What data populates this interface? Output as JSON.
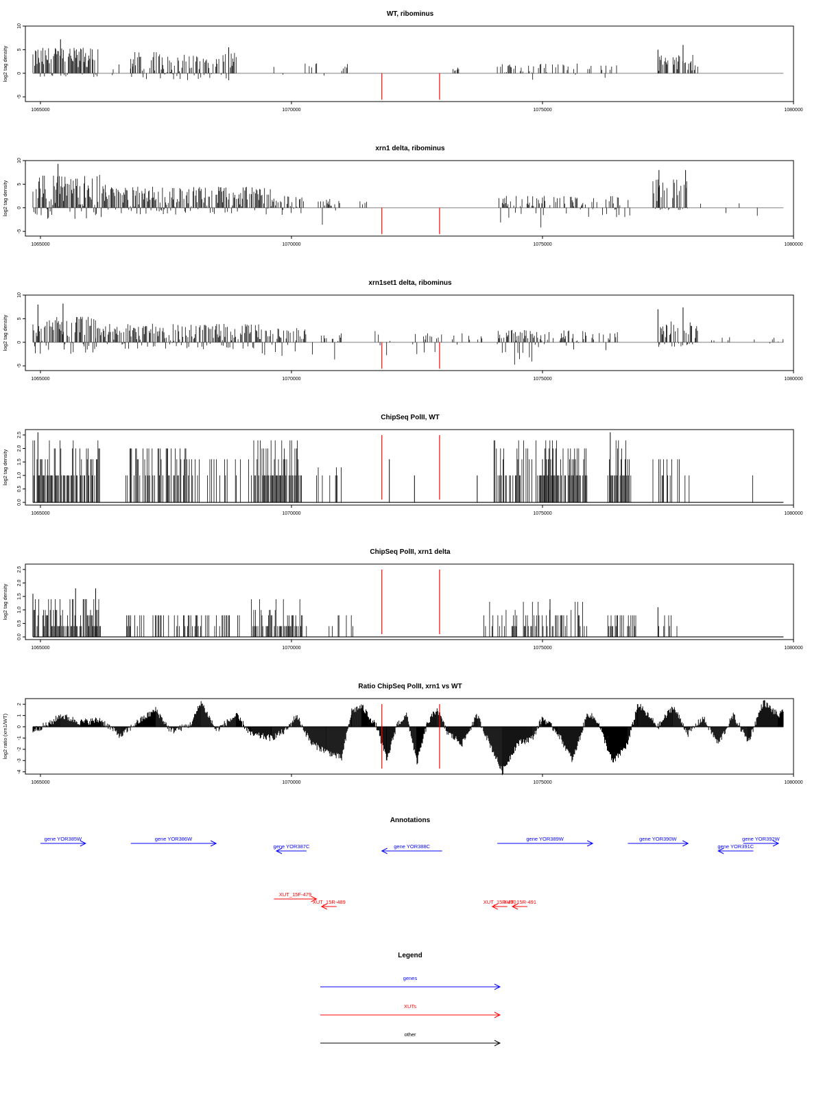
{
  "chart_data": [
    {
      "type": "bar",
      "title": "WT, ribominus",
      "ylabel": "log2 tag density",
      "ylim": [
        -6,
        10
      ],
      "yticks": [
        "10",
        "5",
        "0",
        "-5"
      ],
      "xlim": [
        1064700,
        1080000
      ],
      "xticks": [
        "1065000",
        "1070000",
        "1075000",
        "1080000"
      ],
      "red_markers_x": [
        1071800,
        1072950
      ],
      "segments": [
        {
          "x0": 1064850,
          "x1": 1066150,
          "pmax": 5.5,
          "pmin": -0.8,
          "density": 0.9
        },
        {
          "x0": 1066350,
          "x1": 1066900,
          "pmax": 2.0,
          "pmin": -0.5,
          "density": 0.15
        },
        {
          "x0": 1066800,
          "x1": 1068900,
          "pmax": 4.5,
          "pmin": -1.5,
          "density": 0.7
        },
        {
          "x0": 1069600,
          "x1": 1070800,
          "pmax": 2.2,
          "pmin": -1.5,
          "density": 0.15
        },
        {
          "x0": 1071000,
          "x1": 1071300,
          "pmax": 2.0,
          "pmin": -1.0,
          "density": 0.3
        },
        {
          "x0": 1073200,
          "x1": 1073400,
          "pmax": 1.5,
          "pmin": 0,
          "density": 0.2
        },
        {
          "x0": 1074100,
          "x1": 1075000,
          "pmax": 2.0,
          "pmin": -2.5,
          "density": 0.3
        },
        {
          "x0": 1075000,
          "x1": 1076500,
          "pmax": 2.2,
          "pmin": -1.0,
          "density": 0.25
        },
        {
          "x0": 1077300,
          "x1": 1077500,
          "pmax": 4.0,
          "pmin": 0,
          "density": 0.7
        },
        {
          "x0": 1077600,
          "x1": 1078100,
          "pmax": 4.0,
          "pmin": 0,
          "density": 0.6
        }
      ],
      "spikes": [
        [
          1065400,
          7.2
        ],
        [
          1068750,
          5.5
        ],
        [
          1077800,
          6.0
        ],
        [
          1077300,
          5.0
        ]
      ],
      "baseline": 0
    },
    {
      "type": "bar",
      "title": "xrn1 delta, ribominus",
      "ylabel": "log2 tag density",
      "ylim": [
        -6,
        10
      ],
      "yticks": [
        "10",
        "5",
        "0",
        "-5"
      ],
      "xlim": [
        1064700,
        1080000
      ],
      "xticks": [
        "1065000",
        "1070000",
        "1075000",
        "1080000"
      ],
      "red_markers_x": [
        1071800,
        1072950
      ],
      "segments": [
        {
          "x0": 1064850,
          "x1": 1066300,
          "pmax": 7.0,
          "pmin": -2.5,
          "density": 0.95
        },
        {
          "x0": 1066300,
          "x1": 1069600,
          "pmax": 4.5,
          "pmin": -1.5,
          "density": 0.85
        },
        {
          "x0": 1069600,
          "x1": 1070300,
          "pmax": 2.5,
          "pmin": -1.5,
          "density": 0.5
        },
        {
          "x0": 1070500,
          "x1": 1071000,
          "pmax": 2.0,
          "pmin": -4.0,
          "density": 0.45
        },
        {
          "x0": 1071300,
          "x1": 1071500,
          "pmax": 1.5,
          "pmin": 0,
          "density": 0.2
        },
        {
          "x0": 1074100,
          "x1": 1075000,
          "pmax": 2.5,
          "pmin": -4.5,
          "density": 0.6
        },
        {
          "x0": 1075000,
          "x1": 1076800,
          "pmax": 2.5,
          "pmin": -2.0,
          "density": 0.4
        },
        {
          "x0": 1077200,
          "x1": 1077900,
          "pmax": 6.0,
          "pmin": -0.5,
          "density": 0.75
        },
        {
          "x0": 1078000,
          "x1": 1079500,
          "pmax": 2.0,
          "pmin": -2.0,
          "density": 0.08
        }
      ],
      "spikes": [
        [
          1065350,
          9.3
        ],
        [
          1077320,
          8.0
        ],
        [
          1077850,
          8.0
        ]
      ],
      "baseline": 0
    },
    {
      "type": "bar",
      "title": "xrn1set1 delta, ribominus",
      "ylabel": "log2 tag density",
      "ylim": [
        -6,
        10
      ],
      "yticks": [
        "10",
        "5",
        "0",
        "-5"
      ],
      "xlim": [
        1064700,
        1080000
      ],
      "xticks": [
        "1065000",
        "1070000",
        "1075000",
        "1080000"
      ],
      "red_markers_x": [
        1071800,
        1072950
      ],
      "segments": [
        {
          "x0": 1064850,
          "x1": 1066100,
          "pmax": 5.5,
          "pmin": -2.5,
          "density": 0.9
        },
        {
          "x0": 1066100,
          "x1": 1069400,
          "pmax": 4.0,
          "pmin": -1.5,
          "density": 0.8
        },
        {
          "x0": 1069400,
          "x1": 1070300,
          "pmax": 3.0,
          "pmin": -3.0,
          "density": 0.6
        },
        {
          "x0": 1070400,
          "x1": 1071100,
          "pmax": 2.0,
          "pmin": -4.0,
          "density": 0.5
        },
        {
          "x0": 1071600,
          "x1": 1072000,
          "pmax": 2.5,
          "pmin": -3.5,
          "density": 0.25
        },
        {
          "x0": 1072350,
          "x1": 1073400,
          "pmax": 2.0,
          "pmin": -2.5,
          "density": 0.3
        },
        {
          "x0": 1073400,
          "x1": 1073800,
          "pmax": 1.5,
          "pmin": 0,
          "density": 0.2
        },
        {
          "x0": 1074100,
          "x1": 1075000,
          "pmax": 2.8,
          "pmin": -5.0,
          "density": 0.7
        },
        {
          "x0": 1075000,
          "x1": 1076500,
          "pmax": 2.5,
          "pmin": -2.5,
          "density": 0.45
        },
        {
          "x0": 1077300,
          "x1": 1078100,
          "pmax": 4.5,
          "pmin": -1.0,
          "density": 0.65
        },
        {
          "x0": 1078300,
          "x1": 1079800,
          "pmax": 1.2,
          "pmin": -2.0,
          "density": 0.12
        }
      ],
      "spikes": [
        [
          1065450,
          8.2
        ],
        [
          1064950,
          8.0
        ],
        [
          1077800,
          7.4
        ],
        [
          1077300,
          7.0
        ]
      ],
      "baseline": 0
    },
    {
      "type": "bar",
      "title": "ChipSeq PolII, WT",
      "ylabel": "log2 tag density",
      "ylim": [
        -0.1,
        2.7
      ],
      "yticks": [
        "0.0",
        "0.5",
        "1.0",
        "1.5",
        "2.0",
        "2.5"
      ],
      "xlim": [
        1064700,
        1080000
      ],
      "xticks": [
        "1065000",
        "1070000",
        "1075000",
        "1080000"
      ],
      "red_markers_x": [
        1071800,
        1072950
      ],
      "segments": [
        {
          "x0": 1064850,
          "x1": 1066200,
          "pmax": 2.3,
          "pmin": 0,
          "density": 0.8
        },
        {
          "x0": 1066700,
          "x1": 1067900,
          "pmax": 2.0,
          "pmin": 0,
          "density": 0.6
        },
        {
          "x0": 1067900,
          "x1": 1069200,
          "pmax": 1.6,
          "pmin": 0,
          "density": 0.2
        },
        {
          "x0": 1069200,
          "x1": 1070200,
          "pmax": 2.3,
          "pmin": 0,
          "density": 0.8
        },
        {
          "x0": 1070500,
          "x1": 1071000,
          "pmax": 1.3,
          "pmin": 0,
          "density": 0.2
        },
        {
          "x0": 1074000,
          "x1": 1075300,
          "pmax": 2.3,
          "pmin": 0,
          "density": 0.65
        },
        {
          "x0": 1075000,
          "x1": 1075900,
          "pmax": 2.0,
          "pmin": 0,
          "density": 0.7
        },
        {
          "x0": 1076300,
          "x1": 1076800,
          "pmax": 2.3,
          "pmin": 0,
          "density": 0.8
        },
        {
          "x0": 1077200,
          "x1": 1078000,
          "pmax": 1.6,
          "pmin": 0,
          "density": 0.35
        },
        {
          "x0": 1078400,
          "x1": 1079500,
          "pmax": 1.5,
          "pmin": 0,
          "density": 0.05
        }
      ],
      "spikes": [
        [
          1064950,
          2.6
        ],
        [
          1076350,
          2.6
        ],
        [
          1071950,
          1.6
        ],
        [
          1072450,
          1.0
        ],
        [
          1073700,
          1.0
        ]
      ],
      "baseline": 0
    },
    {
      "type": "bar",
      "title": "ChipSeq PolII, xrn1 delta",
      "ylabel": "log2 tag density",
      "ylim": [
        -0.1,
        2.7
      ],
      "yticks": [
        "0.0",
        "0.5",
        "1.0",
        "1.5",
        "2.0",
        "2.5"
      ],
      "xlim": [
        1064700,
        1080000
      ],
      "xticks": [
        "1065000",
        "1070000",
        "1075000",
        "1080000"
      ],
      "red_markers_x": [
        1071800,
        1072950
      ],
      "segments": [
        {
          "x0": 1064850,
          "x1": 1066200,
          "pmax": 1.6,
          "pmin": 0,
          "density": 0.8
        },
        {
          "x0": 1066700,
          "x1": 1069000,
          "pmax": 0.8,
          "pmin": 0,
          "density": 0.35
        },
        {
          "x0": 1069200,
          "x1": 1070300,
          "pmax": 1.4,
          "pmin": 0,
          "density": 0.7
        },
        {
          "x0": 1070700,
          "x1": 1071400,
          "pmax": 0.8,
          "pmin": 0,
          "density": 0.1
        },
        {
          "x0": 1073800,
          "x1": 1076000,
          "pmax": 1.3,
          "pmin": 0,
          "density": 0.4
        },
        {
          "x0": 1076300,
          "x1": 1076900,
          "pmax": 0.8,
          "pmin": 0,
          "density": 0.5
        },
        {
          "x0": 1077300,
          "x1": 1077800,
          "pmax": 1.0,
          "pmin": 0,
          "density": 0.3
        }
      ],
      "spikes": [
        [
          1064850,
          1.6
        ],
        [
          1066100,
          1.8
        ],
        [
          1065700,
          1.8
        ],
        [
          1075150,
          1.4
        ],
        [
          1077300,
          1.1
        ]
      ],
      "baseline": 0
    },
    {
      "type": "area",
      "title": "Ratio ChipSeq PolII, xrn1 vs WT",
      "ylabel": "log2 ratio (xrn1/WT)",
      "ylim": [
        -4.2,
        2.5
      ],
      "yticks": [
        "2",
        "1",
        "0",
        "-1",
        "-2",
        "-3",
        "-4"
      ],
      "xlim": [
        1064700,
        1080000
      ],
      "xticks": [
        "1065000",
        "1070000",
        "1075000",
        "1080000"
      ],
      "red_markers_x": [
        1071800,
        1072950
      ],
      "x": [
        1064850,
        1065200,
        1065400,
        1065800,
        1066200,
        1066600,
        1066900,
        1067300,
        1067600,
        1068000,
        1068200,
        1068500,
        1068900,
        1069200,
        1069600,
        1069900,
        1070100,
        1070400,
        1070700,
        1071000,
        1071200,
        1071400,
        1071700,
        1071900,
        1072100,
        1072300,
        1072500,
        1072700,
        1072900,
        1073100,
        1073400,
        1073700,
        1074000,
        1074200,
        1074500,
        1074800,
        1075000,
        1075300,
        1075600,
        1075900,
        1076100,
        1076400,
        1076700,
        1076900,
        1077300,
        1077600,
        1077900,
        1078200,
        1078500,
        1078800,
        1079100,
        1079400,
        1079700,
        1079800
      ],
      "y": [
        -0.3,
        0.3,
        1.0,
        0.4,
        0.6,
        -0.8,
        0.3,
        1.5,
        -0.4,
        0.2,
        2.2,
        -0.3,
        1.0,
        -0.7,
        -1.0,
        -0.3,
        1.0,
        -1.5,
        -2.2,
        -2.8,
        1.4,
        1.8,
        0,
        -3.0,
        0.2,
        1.0,
        -3.2,
        0.2,
        1.6,
        -0.5,
        -1.5,
        1.0,
        -2.0,
        -4.0,
        -1.5,
        -1.0,
        0.8,
        -0.5,
        -3.0,
        1.2,
        0.5,
        -3.2,
        -1.5,
        2.0,
        0,
        1.8,
        -0.6,
        0.8,
        -1.5,
        1.0,
        -1.3,
        2.2,
        1.0,
        1.3
      ],
      "baseline": 0
    }
  ],
  "annotations": {
    "title": "Annotations",
    "items": [
      {
        "label": "gene YOR385W",
        "kind": "gene",
        "dir": "right",
        "x0": 1065000,
        "x1": 1065900,
        "row": 0
      },
      {
        "label": "gene YOR386W",
        "kind": "gene",
        "dir": "right",
        "x0": 1066800,
        "x1": 1068500,
        "row": 0
      },
      {
        "label": "gene YOR387C",
        "kind": "gene",
        "dir": "left",
        "x0": 1069700,
        "x1": 1070300,
        "row": 1
      },
      {
        "label": "gene YOR388C",
        "kind": "gene",
        "dir": "left",
        "x0": 1071800,
        "x1": 1073000,
        "row": 1
      },
      {
        "label": "gene YOR389W",
        "kind": "gene",
        "dir": "right",
        "x0": 1074100,
        "x1": 1076000,
        "row": 0
      },
      {
        "label": "gene YOR390W",
        "kind": "gene",
        "dir": "right",
        "x0": 1076700,
        "x1": 1077900,
        "row": 0
      },
      {
        "label": "gene YOR391C",
        "kind": "gene",
        "dir": "left",
        "x0": 1078500,
        "x1": 1079200,
        "row": 1
      },
      {
        "label": "gene YOR392W",
        "kind": "gene",
        "dir": "right",
        "x0": 1079000,
        "x1": 1079700,
        "row": 0
      },
      {
        "label": "XUT_15F-479",
        "kind": "xut",
        "dir": "right",
        "x0": 1069650,
        "x1": 1070500,
        "row": 2
      },
      {
        "label": "XUT_15R-489",
        "kind": "xut",
        "dir": "left",
        "x0": 1070600,
        "x1": 1070900,
        "row": 3
      },
      {
        "label": "XUT_15R-490",
        "kind": "xut",
        "dir": "left",
        "x0": 1074000,
        "x1": 1074300,
        "row": 3
      },
      {
        "label": "XUT_15R-491",
        "kind": "xut",
        "dir": "left",
        "x0": 1074400,
        "x1": 1074700,
        "row": 3
      }
    ]
  },
  "legend": {
    "title": "Legend",
    "items": [
      {
        "label": "genes",
        "color": "#0000ff"
      },
      {
        "label": "XUTs",
        "color": "#ff0000"
      },
      {
        "label": "other",
        "color": "#000000"
      }
    ]
  },
  "colors": {
    "gene": "#0000ff",
    "xut": "#ff0000",
    "marker": "#ff0000",
    "bar": "#000000",
    "baseline": "#999999"
  }
}
